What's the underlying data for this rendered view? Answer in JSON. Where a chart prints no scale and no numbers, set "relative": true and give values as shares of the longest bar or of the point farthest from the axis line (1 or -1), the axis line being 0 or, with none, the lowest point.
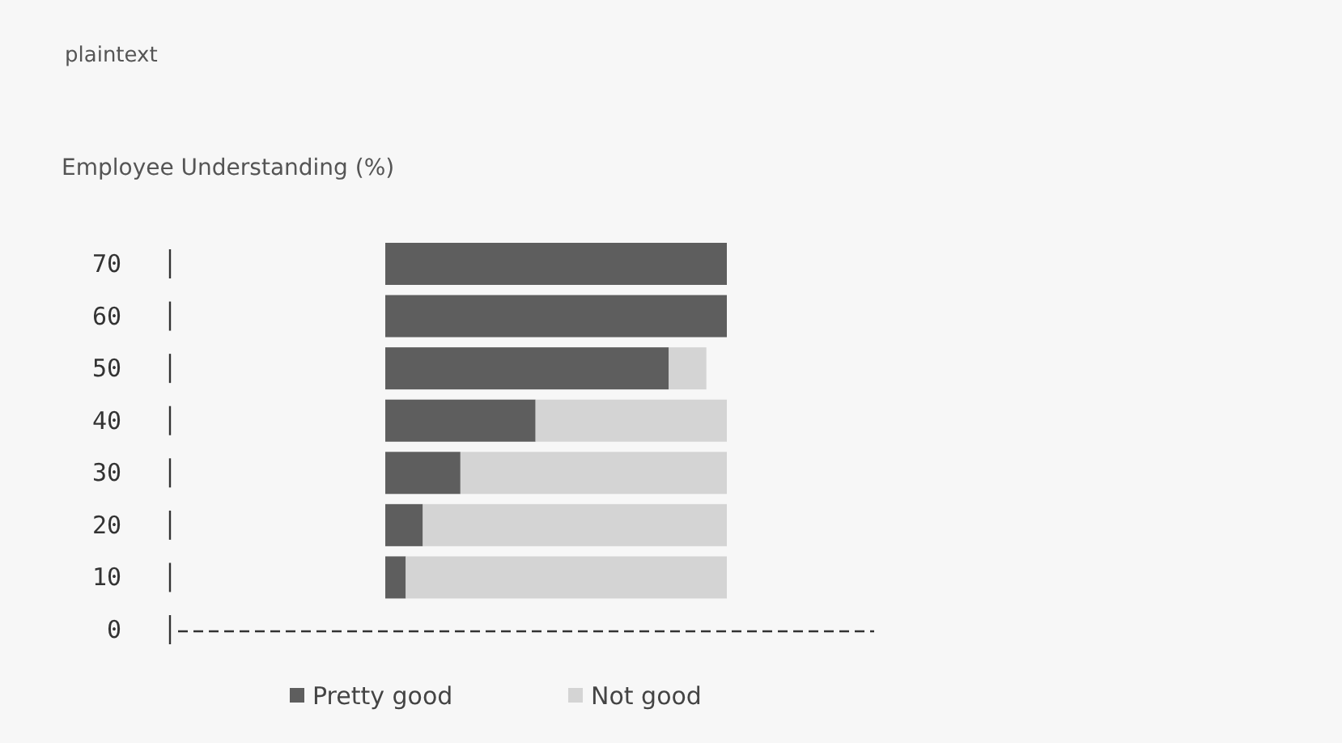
{
  "chart_data": {
    "type": "bar",
    "orientation": "horizontal",
    "stacked": true,
    "relative": true,
    "title": "Employee Understanding (%)",
    "annotations": [
      "plaintext"
    ],
    "categories": [
      "70",
      "60",
      "50",
      "40",
      "30",
      "20",
      "10",
      "0"
    ],
    "series": [
      {
        "name": "Pretty good",
        "color": "#5e5e5e",
        "values": [
          1,
          1,
          0.83,
          0.44,
          0.22,
          0.11,
          0.06,
          0
        ]
      },
      {
        "name": "Not good",
        "color": "#d4d4d4",
        "values": [
          0,
          0,
          0.11,
          0.56,
          0.78,
          0.89,
          0.94,
          0
        ]
      }
    ],
    "legend": "bottom"
  }
}
